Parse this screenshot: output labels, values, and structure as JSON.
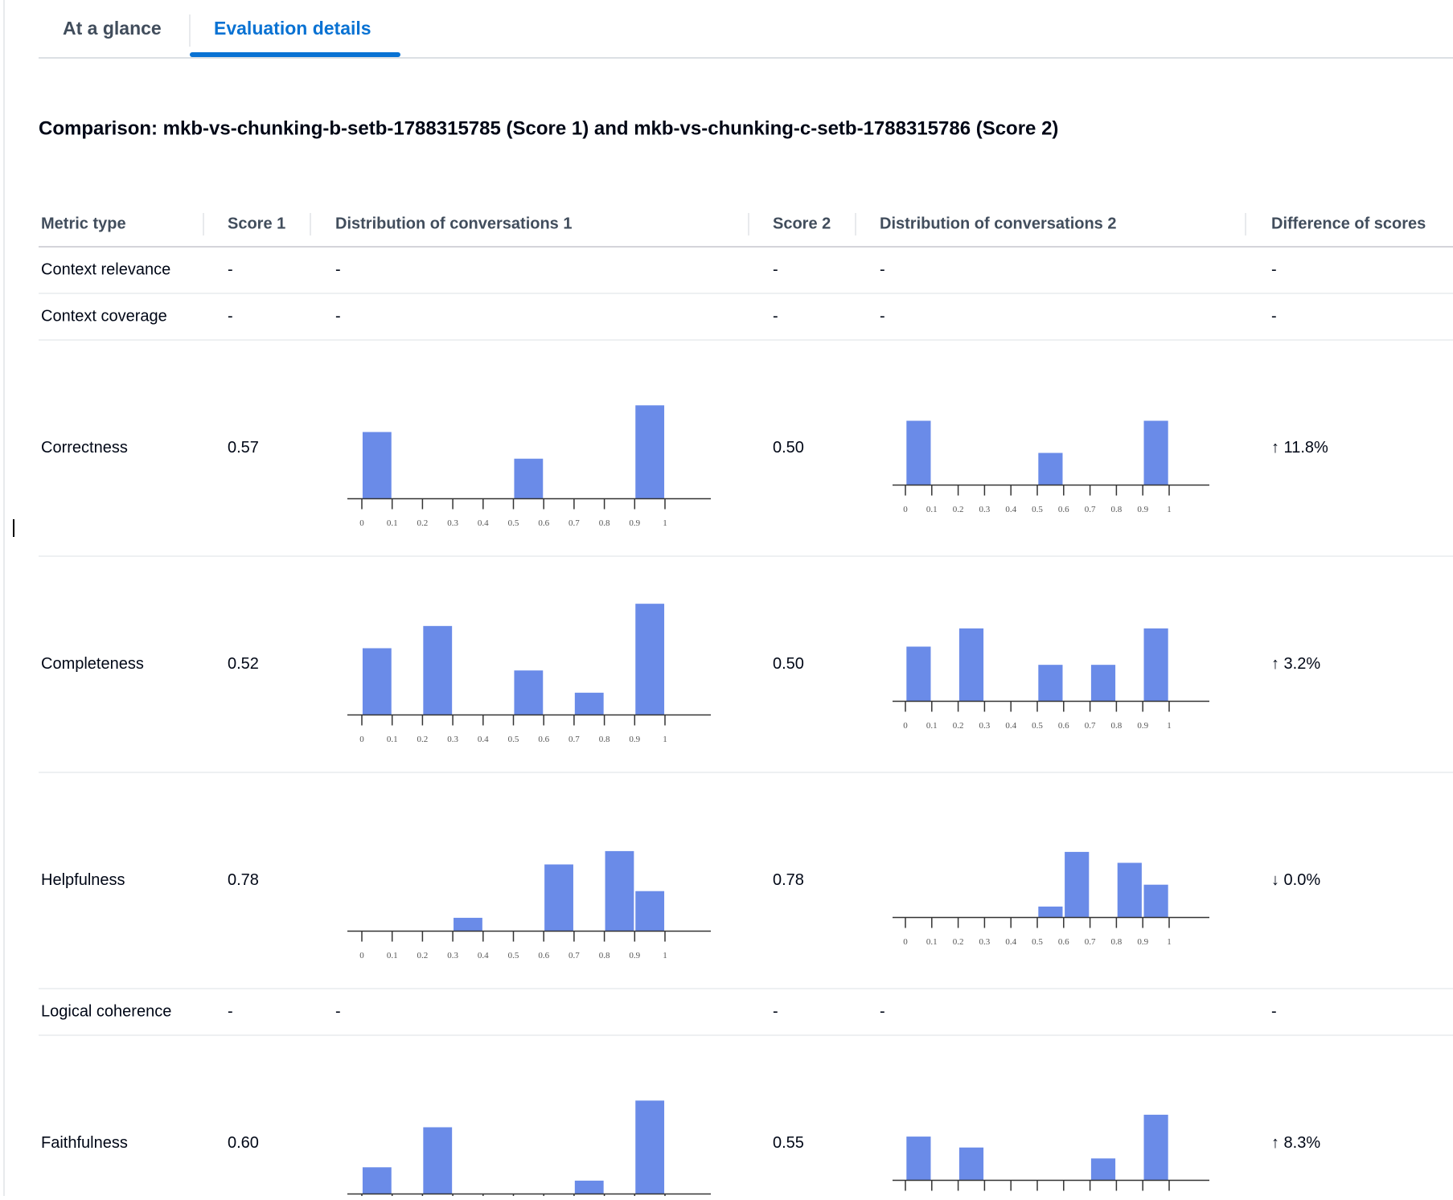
{
  "tabs": [
    "At a glance",
    "Evaluation details"
  ],
  "title": "Comparison: mkb-vs-chunking-b-setb-1788315785 (Score 1) and mkb-vs-chunking-c-setb-1788315786 (Score 2)",
  "table": {
    "headers": [
      "Metric type",
      "Score 1",
      "Distribution of conversations 1",
      "Score 2",
      "Distribution of conversations 2",
      "Difference of scores"
    ],
    "bins": [
      0,
      0.1,
      0.2,
      0.3,
      0.4,
      0.5,
      0.6,
      0.7,
      0.8,
      0.9,
      1
    ],
    "rows": [
      {
        "metric": "Context relevance",
        "score1": "-",
        "dist1": "-",
        "score2": "-",
        "dist2": "-",
        "difference": "-"
      },
      {
        "metric": "Context coverage",
        "score1": "-",
        "dist1": "-",
        "score2": "-",
        "dist2": "-",
        "difference": "-"
      },
      {
        "metric": "Correctness",
        "score1": "0.57",
        "dist1": {
          "counts": [
            5,
            0,
            0,
            0,
            0,
            3,
            0,
            0,
            0,
            7
          ],
          "ylim": [
            0,
            10
          ]
        },
        "score2": "0.50",
        "dist2": {
          "counts": [
            2,
            0,
            0,
            0,
            0,
            1,
            0,
            0,
            0,
            2
          ],
          "ylim": [
            0,
            3.4
          ]
        },
        "difference": "↑ 11.8%"
      },
      {
        "metric": "Completeness",
        "score1": "0.52",
        "dist1": {
          "counts": [
            3,
            0,
            4,
            0,
            0,
            2,
            0,
            1,
            0,
            5
          ],
          "ylim": [
            0,
            6
          ]
        },
        "score2": "0.50",
        "dist2": {
          "counts": [
            3,
            0,
            4,
            0,
            0,
            2,
            0,
            2,
            0,
            4
          ],
          "ylim": [
            0,
            6
          ]
        },
        "difference": "↑ 3.2%"
      },
      {
        "metric": "Helpfulness",
        "score1": "0.78",
        "dist1": {
          "counts": [
            0,
            0,
            0,
            1,
            0,
            0,
            5,
            0,
            6,
            3
          ],
          "ylim": [
            0,
            10
          ]
        },
        "score2": "0.78",
        "dist2": {
          "counts": [
            0,
            0,
            0,
            0,
            0,
            1,
            6,
            0,
            5,
            3
          ],
          "ylim": [
            0,
            10
          ]
        },
        "difference": "↓ 0.0%"
      },
      {
        "metric": "Logical coherence",
        "score1": "-",
        "dist1": "-",
        "score2": "-",
        "dist2": "-",
        "difference": "-"
      },
      {
        "metric": "Faithfulness",
        "score1": "0.60",
        "dist1": {
          "counts": [
            2,
            0,
            5,
            0,
            0,
            0,
            0,
            1,
            0,
            7
          ],
          "ylim": [
            0,
            10
          ]
        },
        "score2": "0.55",
        "dist2": {
          "counts": [
            4,
            0,
            3,
            0,
            0,
            0,
            0,
            2,
            0,
            6
          ],
          "ylim": [
            0,
            10
          ]
        },
        "difference": "↑ 8.3%"
      }
    ]
  }
}
